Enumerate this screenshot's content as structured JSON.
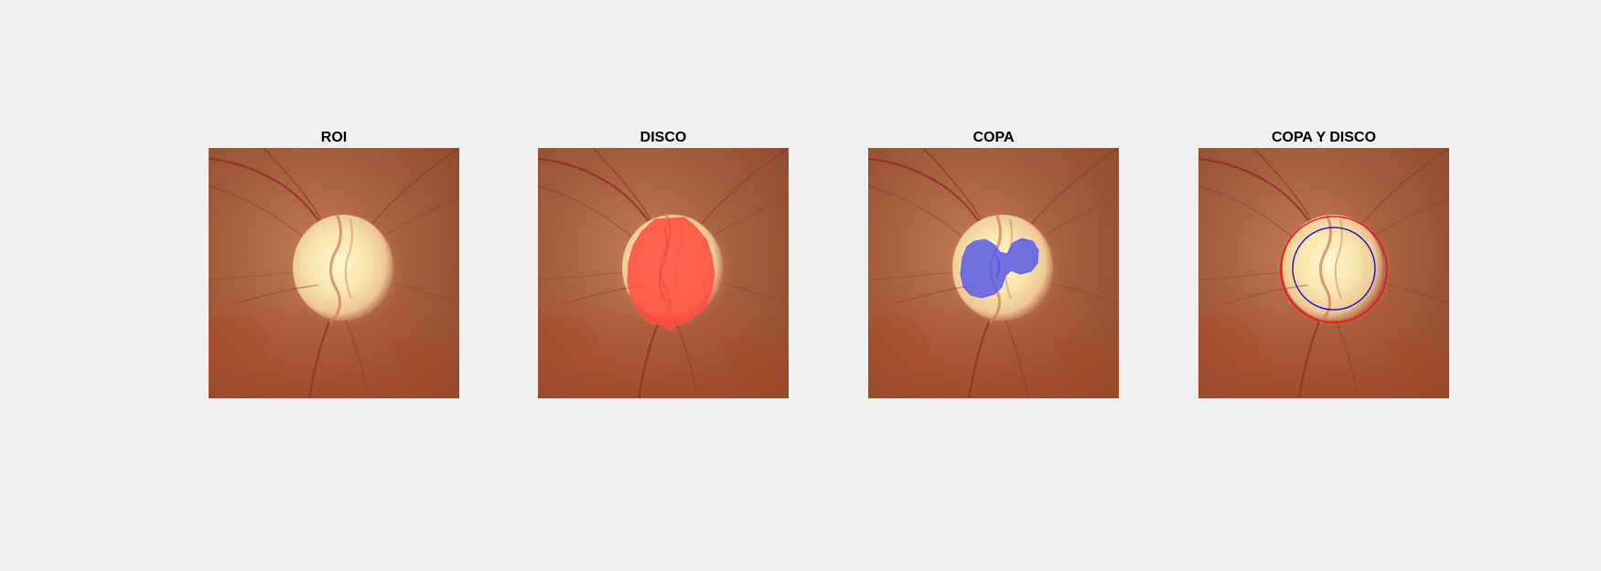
{
  "figure": {
    "background_color": "#f0f0f0",
    "panels": [
      {
        "title": "ROI",
        "overlay": "none"
      },
      {
        "title": "DISCO",
        "overlay": "disc-mask",
        "overlay_color": "#ff4a3d"
      },
      {
        "title": "COPA",
        "overlay": "cup-mask",
        "overlay_color": "#5a5ae6"
      },
      {
        "title": "COPA Y DISCO",
        "overlay": "cup-and-disc-contours",
        "disc_contour_color": "#ff0000",
        "cup_contour_color": "#0000cc"
      }
    ]
  }
}
